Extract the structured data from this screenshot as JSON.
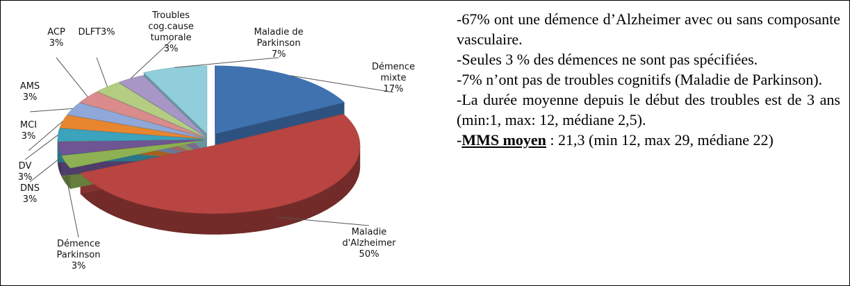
{
  "chart_data": {
    "type": "pie",
    "categories": [
      "Démence mixte",
      "Maladie d'Alzheimer",
      "Démence Parkinson",
      "DNS",
      "DV",
      "MCI",
      "AMS",
      "ACP",
      "DLFT",
      "Troubles cog.cause tumorale",
      "Maladie de Parkinson"
    ],
    "values": [
      17,
      50,
      3,
      3,
      3,
      3,
      3,
      3,
      3,
      3,
      7
    ],
    "value_labels": [
      "17%",
      "50%",
      "3%",
      "3%",
      "3%",
      "3%",
      "3%",
      "3%",
      "3%",
      "3%",
      "7%"
    ],
    "colors": [
      "#4072b0",
      "#b84541",
      "#8db153",
      "#6e5594",
      "#3ba3bb",
      "#e8862f",
      "#8fa8d9",
      "#d98c8b",
      "#b4cd82",
      "#a897c6",
      "#90cedb"
    ]
  },
  "text_panel": {
    "paragraphs": [
      "-67% ont une démence d’Alzheimer avec ou sans composante vasculaire.",
      "-Seules 3 % des démences ne sont pas spécifiées.",
      "-7% n’ont pas de troubles cognitifs (Maladie de Parkinson).",
      "-La durée moyenne depuis le début des troubles est de 3 ans (min:1, max: 12, médiane 2,5)."
    ],
    "last": {
      "prefix": "-",
      "bold": "MMS moyen",
      "rest": " : 21,3 (min 12, max 29, médiane 22)"
    }
  }
}
